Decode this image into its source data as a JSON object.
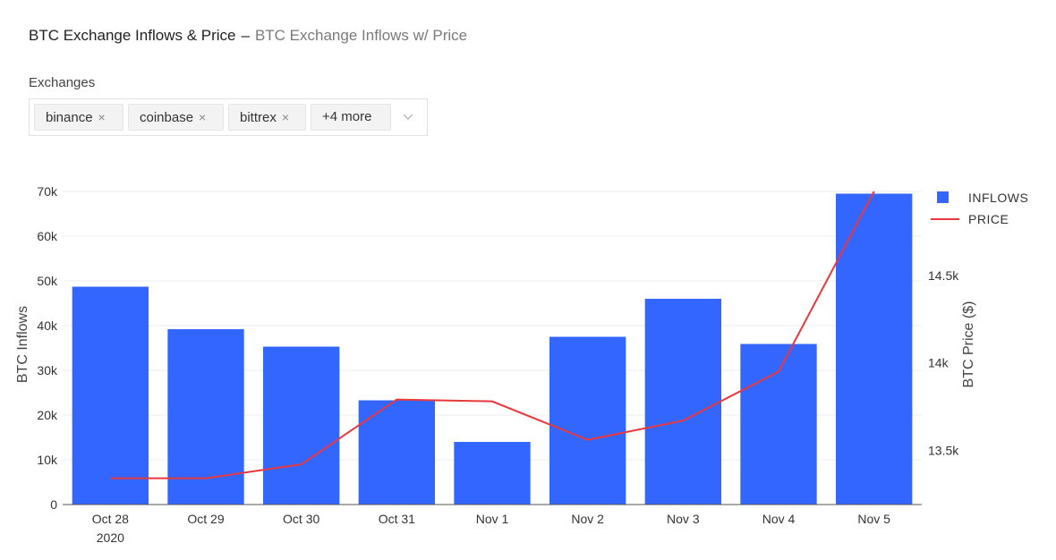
{
  "header": {
    "title": "BTC Exchange Inflows & Price",
    "separator": "–",
    "subtitle": "BTC Exchange Inflows w/ Price"
  },
  "filter": {
    "label": "Exchanges",
    "chips": [
      "binance",
      "coinbase",
      "bittrex"
    ],
    "more_label": "+4 more",
    "remove_glyph": "×"
  },
  "colors": {
    "bar": "#3366ff",
    "line": "#e8383d",
    "grid": "#ececec"
  },
  "chart_data": {
    "type": "bar",
    "categories": [
      "Oct 28",
      "Oct 29",
      "Oct 30",
      "Oct 31",
      "Nov 1",
      "Nov 2",
      "Nov 3",
      "Nov 4",
      "Nov 5"
    ],
    "first_category_sublabel": "2020",
    "series": [
      {
        "name": "INFLOWS",
        "type": "bar",
        "axis": "left",
        "values": [
          48700,
          39200,
          35300,
          23300,
          14000,
          37500,
          46000,
          35900,
          69500
        ]
      },
      {
        "name": "PRICE",
        "type": "line",
        "axis": "right",
        "values": [
          13340,
          13340,
          13420,
          13790,
          13780,
          13560,
          13670,
          13950,
          14980
        ]
      }
    ],
    "ylabel": "BTC Inflows",
    "ylabel_right": "BTC Price ($)",
    "ylim": [
      0,
      70000
    ],
    "y_ticks": [
      0,
      10000,
      20000,
      30000,
      40000,
      50000,
      60000,
      70000
    ],
    "y_tick_labels": [
      "0",
      "10k",
      "20k",
      "30k",
      "40k",
      "50k",
      "60k",
      "70k"
    ],
    "ylim_right": [
      13190,
      14980
    ],
    "y_right_ticks": [
      13500,
      14000,
      14500
    ],
    "y_right_tick_labels": [
      "13.5k",
      "14k",
      "14.5k"
    ],
    "legend_position": "top-right",
    "grid": true
  }
}
